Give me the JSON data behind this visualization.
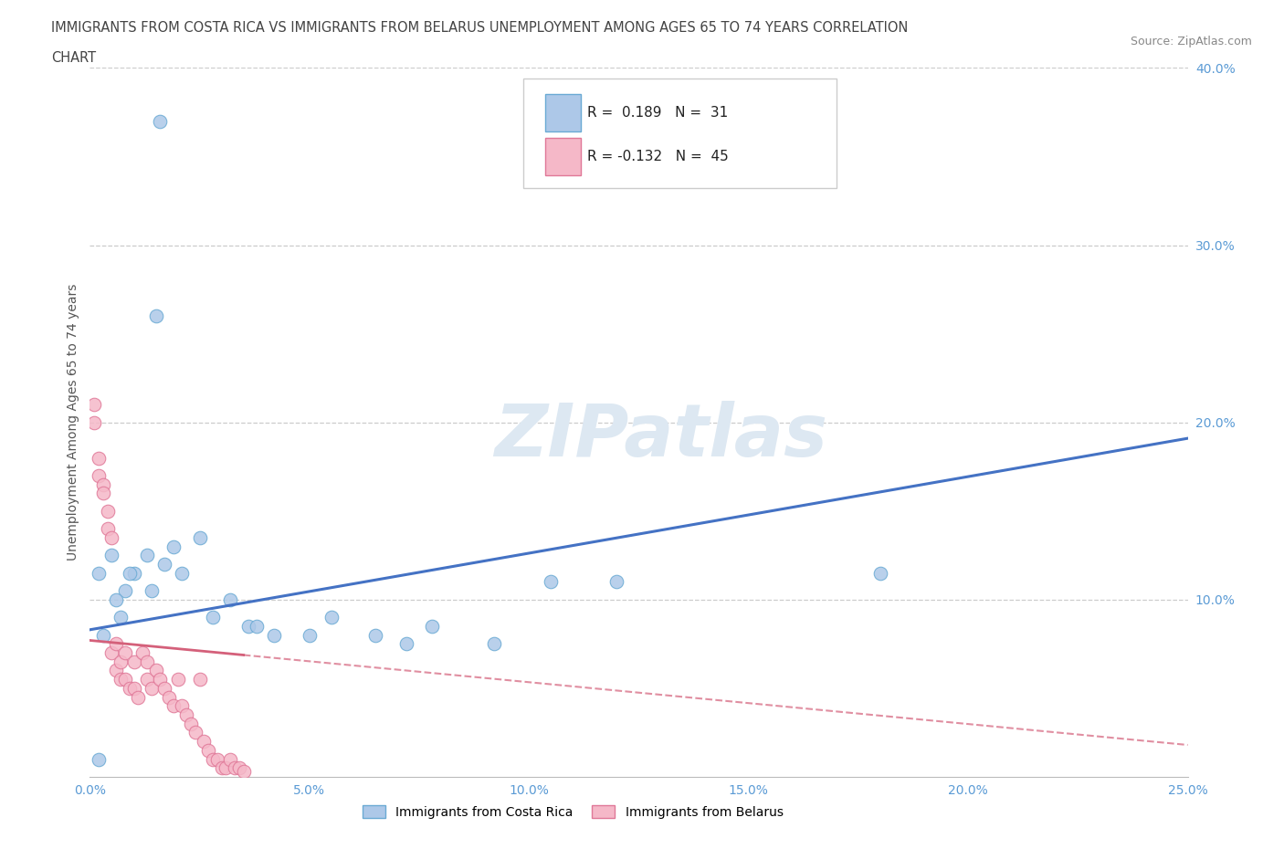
{
  "title_line1": "IMMIGRANTS FROM COSTA RICA VS IMMIGRANTS FROM BELARUS UNEMPLOYMENT AMONG AGES 65 TO 74 YEARS CORRELATION",
  "title_line2": "CHART",
  "source_text": "Source: ZipAtlas.com",
  "ylabel": "Unemployment Among Ages 65 to 74 years",
  "xlim": [
    0.0,
    0.25
  ],
  "ylim": [
    0.0,
    0.4
  ],
  "xtick_labels": [
    "0.0%",
    "5.0%",
    "10.0%",
    "15.0%",
    "20.0%",
    "25.0%"
  ],
  "xtick_vals": [
    0.0,
    0.05,
    0.1,
    0.15,
    0.2,
    0.25
  ],
  "ytick_labels": [
    "10.0%",
    "20.0%",
    "30.0%",
    "40.0%"
  ],
  "ytick_vals": [
    0.1,
    0.2,
    0.3,
    0.4
  ],
  "color_cr": "#adc8e8",
  "color_cr_edge": "#6aaad4",
  "color_cr_line": "#4472c4",
  "color_bl": "#f5b8c8",
  "color_bl_edge": "#e07898",
  "color_bl_line": "#d4607a",
  "r_cr": 0.189,
  "n_cr": 31,
  "r_bl": -0.132,
  "n_bl": 45,
  "legend_label_cr": "Immigrants from Costa Rica",
  "legend_label_bl": "Immigrants from Belarus",
  "watermark": "ZIPatlas",
  "trend_cr_x0": 0.0,
  "trend_cr_y0": 0.083,
  "trend_cr_x1": 0.25,
  "trend_cr_y1": 0.191,
  "trend_bl_x0": 0.0,
  "trend_bl_y0": 0.077,
  "trend_bl_x1": 0.25,
  "trend_bl_y1": 0.018,
  "trend_bl_solid_end": 0.035,
  "costa_rica_x": [
    0.016,
    0.002,
    0.01,
    0.008,
    0.013,
    0.006,
    0.017,
    0.019,
    0.021,
    0.025,
    0.005,
    0.009,
    0.014,
    0.028,
    0.032,
    0.036,
    0.038,
    0.042,
    0.05,
    0.055,
    0.065,
    0.072,
    0.078,
    0.092,
    0.105,
    0.12,
    0.003,
    0.007,
    0.015,
    0.18,
    0.002
  ],
  "costa_rica_y": [
    0.37,
    0.115,
    0.115,
    0.105,
    0.125,
    0.1,
    0.12,
    0.13,
    0.115,
    0.135,
    0.125,
    0.115,
    0.105,
    0.09,
    0.1,
    0.085,
    0.085,
    0.08,
    0.08,
    0.09,
    0.08,
    0.075,
    0.085,
    0.075,
    0.11,
    0.11,
    0.08,
    0.09,
    0.26,
    0.115,
    0.01
  ],
  "belarus_x": [
    0.001,
    0.001,
    0.002,
    0.002,
    0.003,
    0.003,
    0.004,
    0.004,
    0.005,
    0.005,
    0.006,
    0.006,
    0.007,
    0.007,
    0.008,
    0.008,
    0.009,
    0.01,
    0.01,
    0.011,
    0.012,
    0.013,
    0.013,
    0.014,
    0.015,
    0.016,
    0.017,
    0.018,
    0.019,
    0.02,
    0.021,
    0.022,
    0.023,
    0.024,
    0.025,
    0.026,
    0.027,
    0.028,
    0.029,
    0.03,
    0.031,
    0.032,
    0.033,
    0.034,
    0.035
  ],
  "belarus_y": [
    0.2,
    0.21,
    0.18,
    0.17,
    0.165,
    0.16,
    0.15,
    0.14,
    0.135,
    0.07,
    0.075,
    0.06,
    0.065,
    0.055,
    0.07,
    0.055,
    0.05,
    0.065,
    0.05,
    0.045,
    0.07,
    0.065,
    0.055,
    0.05,
    0.06,
    0.055,
    0.05,
    0.045,
    0.04,
    0.055,
    0.04,
    0.035,
    0.03,
    0.025,
    0.055,
    0.02,
    0.015,
    0.01,
    0.01,
    0.005,
    0.005,
    0.01,
    0.005,
    0.005,
    0.003
  ]
}
